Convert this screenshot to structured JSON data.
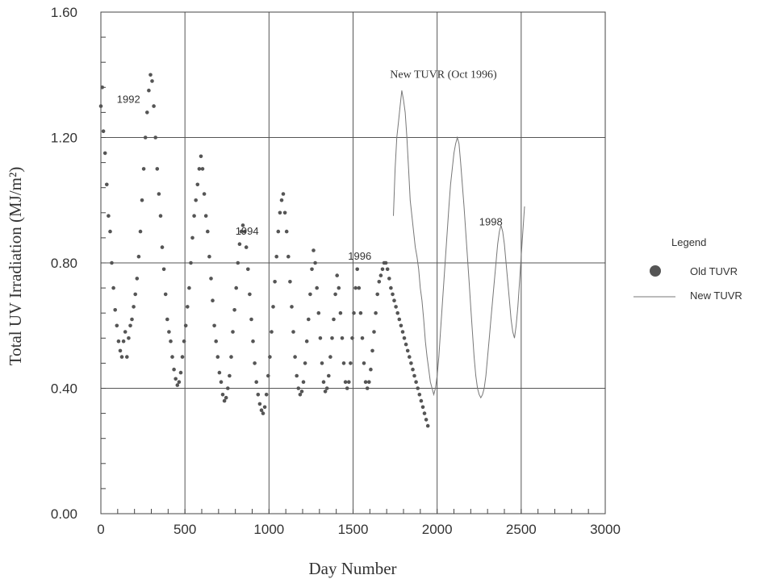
{
  "chart_data": {
    "type": "scatter",
    "title": "",
    "xlabel": "Day Number",
    "ylabel": "Total UV Irradiation (MJ/m²)",
    "xlim": [
      0,
      3000
    ],
    "ylim": [
      0,
      1.6
    ],
    "xticks": [
      "0",
      "500",
      "1000",
      "1500",
      "2000",
      "2500",
      "3000"
    ],
    "yticks": [
      "0.00",
      "0.40",
      "0.80",
      "1.20",
      "1.60"
    ],
    "grid": true,
    "legend_position": "right",
    "legend_title": "Legend",
    "series": [
      {
        "name": "Old TUVR",
        "style": "dots",
        "color": "#555555",
        "points": [
          [
            0,
            1.3
          ],
          [
            8,
            1.36
          ],
          [
            15,
            1.22
          ],
          [
            25,
            1.15
          ],
          [
            35,
            1.05
          ],
          [
            45,
            0.95
          ],
          [
            55,
            0.9
          ],
          [
            65,
            0.8
          ],
          [
            75,
            0.72
          ],
          [
            85,
            0.65
          ],
          [
            95,
            0.6
          ],
          [
            105,
            0.55
          ],
          [
            115,
            0.52
          ],
          [
            125,
            0.5
          ],
          [
            135,
            0.55
          ],
          [
            145,
            0.58
          ],
          [
            155,
            0.5
          ],
          [
            165,
            0.56
          ],
          [
            175,
            0.6
          ],
          [
            185,
            0.62
          ],
          [
            195,
            0.66
          ],
          [
            205,
            0.7
          ],
          [
            215,
            0.75
          ],
          [
            225,
            0.82
          ],
          [
            235,
            0.9
          ],
          [
            245,
            1.0
          ],
          [
            255,
            1.1
          ],
          [
            265,
            1.2
          ],
          [
            275,
            1.28
          ],
          [
            285,
            1.35
          ],
          [
            295,
            1.4
          ],
          [
            305,
            1.38
          ],
          [
            315,
            1.3
          ],
          [
            325,
            1.2
          ],
          [
            335,
            1.1
          ],
          [
            345,
            1.02
          ],
          [
            355,
            0.95
          ],
          [
            365,
            0.85
          ],
          [
            375,
            0.78
          ],
          [
            385,
            0.7
          ],
          [
            395,
            0.62
          ],
          [
            405,
            0.58
          ],
          [
            415,
            0.55
          ],
          [
            425,
            0.5
          ],
          [
            435,
            0.46
          ],
          [
            445,
            0.43
          ],
          [
            455,
            0.41
          ],
          [
            465,
            0.42
          ],
          [
            475,
            0.45
          ],
          [
            485,
            0.5
          ],
          [
            495,
            0.55
          ],
          [
            505,
            0.6
          ],
          [
            515,
            0.66
          ],
          [
            525,
            0.72
          ],
          [
            535,
            0.8
          ],
          [
            545,
            0.88
          ],
          [
            555,
            0.95
          ],
          [
            565,
            1.0
          ],
          [
            575,
            1.05
          ],
          [
            585,
            1.1
          ],
          [
            595,
            1.14
          ],
          [
            605,
            1.1
          ],
          [
            615,
            1.02
          ],
          [
            625,
            0.95
          ],
          [
            635,
            0.9
          ],
          [
            645,
            0.82
          ],
          [
            655,
            0.75
          ],
          [
            665,
            0.68
          ],
          [
            675,
            0.6
          ],
          [
            685,
            0.55
          ],
          [
            695,
            0.5
          ],
          [
            705,
            0.45
          ],
          [
            715,
            0.42
          ],
          [
            725,
            0.38
          ],
          [
            735,
            0.36
          ],
          [
            745,
            0.37
          ],
          [
            755,
            0.4
          ],
          [
            765,
            0.44
          ],
          [
            775,
            0.5
          ],
          [
            785,
            0.58
          ],
          [
            795,
            0.65
          ],
          [
            805,
            0.72
          ],
          [
            815,
            0.8
          ],
          [
            825,
            0.86
          ],
          [
            835,
            0.9
          ],
          [
            845,
            0.92
          ],
          [
            855,
            0.9
          ],
          [
            865,
            0.85
          ],
          [
            875,
            0.78
          ],
          [
            885,
            0.7
          ],
          [
            895,
            0.62
          ],
          [
            905,
            0.55
          ],
          [
            915,
            0.48
          ],
          [
            925,
            0.42
          ],
          [
            935,
            0.38
          ],
          [
            945,
            0.35
          ],
          [
            955,
            0.33
          ],
          [
            965,
            0.32
          ],
          [
            975,
            0.34
          ],
          [
            985,
            0.38
          ],
          [
            995,
            0.44
          ],
          [
            1005,
            0.5
          ],
          [
            1015,
            0.58
          ],
          [
            1025,
            0.66
          ],
          [
            1035,
            0.74
          ],
          [
            1045,
            0.82
          ],
          [
            1055,
            0.9
          ],
          [
            1065,
            0.96
          ],
          [
            1075,
            1.0
          ],
          [
            1085,
            1.02
          ],
          [
            1095,
            0.96
          ],
          [
            1105,
            0.9
          ],
          [
            1115,
            0.82
          ],
          [
            1125,
            0.74
          ],
          [
            1135,
            0.66
          ],
          [
            1145,
            0.58
          ],
          [
            1155,
            0.5
          ],
          [
            1165,
            0.44
          ],
          [
            1175,
            0.4
          ],
          [
            1185,
            0.38
          ],
          [
            1195,
            0.39
          ],
          [
            1205,
            0.42
          ],
          [
            1215,
            0.48
          ],
          [
            1225,
            0.55
          ],
          [
            1235,
            0.62
          ],
          [
            1245,
            0.7
          ],
          [
            1255,
            0.78
          ],
          [
            1265,
            0.84
          ],
          [
            1275,
            0.8
          ],
          [
            1285,
            0.72
          ],
          [
            1295,
            0.64
          ],
          [
            1305,
            0.56
          ],
          [
            1315,
            0.48
          ],
          [
            1325,
            0.42
          ],
          [
            1335,
            0.39
          ],
          [
            1345,
            0.4
          ],
          [
            1355,
            0.44
          ],
          [
            1365,
            0.5
          ],
          [
            1375,
            0.56
          ],
          [
            1385,
            0.62
          ],
          [
            1395,
            0.7
          ],
          [
            1405,
            0.76
          ],
          [
            1415,
            0.72
          ],
          [
            1425,
            0.64
          ],
          [
            1435,
            0.56
          ],
          [
            1445,
            0.48
          ],
          [
            1455,
            0.42
          ],
          [
            1465,
            0.4
          ],
          [
            1475,
            0.42
          ],
          [
            1485,
            0.48
          ],
          [
            1495,
            0.56
          ],
          [
            1505,
            0.64
          ],
          [
            1515,
            0.72
          ],
          [
            1525,
            0.78
          ],
          [
            1535,
            0.72
          ],
          [
            1545,
            0.64
          ],
          [
            1555,
            0.56
          ],
          [
            1565,
            0.48
          ],
          [
            1575,
            0.42
          ],
          [
            1585,
            0.4
          ],
          [
            1595,
            0.42
          ],
          [
            1605,
            0.46
          ],
          [
            1615,
            0.52
          ],
          [
            1625,
            0.58
          ],
          [
            1635,
            0.64
          ],
          [
            1645,
            0.7
          ],
          [
            1655,
            0.74
          ],
          [
            1665,
            0.76
          ],
          [
            1675,
            0.78
          ],
          [
            1685,
            0.8
          ],
          [
            1695,
            0.8
          ],
          [
            1705,
            0.78
          ],
          [
            1715,
            0.75
          ],
          [
            1725,
            0.72
          ],
          [
            1735,
            0.7
          ],
          [
            1745,
            0.68
          ],
          [
            1755,
            0.66
          ],
          [
            1765,
            0.64
          ],
          [
            1775,
            0.62
          ],
          [
            1785,
            0.6
          ],
          [
            1795,
            0.58
          ],
          [
            1805,
            0.56
          ],
          [
            1815,
            0.54
          ],
          [
            1825,
            0.52
          ],
          [
            1835,
            0.5
          ],
          [
            1845,
            0.48
          ],
          [
            1855,
            0.46
          ],
          [
            1865,
            0.44
          ],
          [
            1875,
            0.42
          ],
          [
            1885,
            0.4
          ],
          [
            1895,
            0.38
          ],
          [
            1905,
            0.36
          ],
          [
            1915,
            0.34
          ],
          [
            1925,
            0.32
          ],
          [
            1935,
            0.3
          ],
          [
            1945,
            0.28
          ]
        ]
      },
      {
        "name": "New TUVR",
        "style": "line",
        "color": "#777777",
        "points": [
          [
            1740,
            0.95
          ],
          [
            1750,
            1.1
          ],
          [
            1760,
            1.2
          ],
          [
            1770,
            1.25
          ],
          [
            1780,
            1.3
          ],
          [
            1790,
            1.35
          ],
          [
            1800,
            1.32
          ],
          [
            1810,
            1.28
          ],
          [
            1820,
            1.2
          ],
          [
            1830,
            1.1
          ],
          [
            1840,
            1.0
          ],
          [
            1850,
            0.95
          ],
          [
            1860,
            0.9
          ],
          [
            1870,
            0.85
          ],
          [
            1880,
            0.82
          ],
          [
            1890,
            0.78
          ],
          [
            1900,
            0.72
          ],
          [
            1910,
            0.68
          ],
          [
            1920,
            0.62
          ],
          [
            1930,
            0.55
          ],
          [
            1940,
            0.5
          ],
          [
            1950,
            0.46
          ],
          [
            1960,
            0.42
          ],
          [
            1970,
            0.4
          ],
          [
            1980,
            0.38
          ],
          [
            1990,
            0.4
          ],
          [
            2000,
            0.44
          ],
          [
            2010,
            0.5
          ],
          [
            2020,
            0.58
          ],
          [
            2030,
            0.66
          ],
          [
            2040,
            0.74
          ],
          [
            2050,
            0.82
          ],
          [
            2060,
            0.9
          ],
          [
            2070,
            0.98
          ],
          [
            2080,
            1.05
          ],
          [
            2090,
            1.1
          ],
          [
            2100,
            1.15
          ],
          [
            2110,
            1.18
          ],
          [
            2120,
            1.2
          ],
          [
            2130,
            1.18
          ],
          [
            2140,
            1.12
          ],
          [
            2150,
            1.05
          ],
          [
            2160,
            0.98
          ],
          [
            2170,
            0.9
          ],
          [
            2180,
            0.82
          ],
          [
            2190,
            0.74
          ],
          [
            2200,
            0.66
          ],
          [
            2210,
            0.58
          ],
          [
            2220,
            0.5
          ],
          [
            2230,
            0.44
          ],
          [
            2240,
            0.4
          ],
          [
            2250,
            0.38
          ],
          [
            2260,
            0.37
          ],
          [
            2270,
            0.38
          ],
          [
            2280,
            0.4
          ],
          [
            2290,
            0.44
          ],
          [
            2300,
            0.5
          ],
          [
            2310,
            0.56
          ],
          [
            2320,
            0.62
          ],
          [
            2330,
            0.68
          ],
          [
            2340,
            0.74
          ],
          [
            2350,
            0.8
          ],
          [
            2360,
            0.86
          ],
          [
            2370,
            0.9
          ],
          [
            2380,
            0.92
          ],
          [
            2390,
            0.9
          ],
          [
            2400,
            0.86
          ],
          [
            2410,
            0.8
          ],
          [
            2420,
            0.74
          ],
          [
            2430,
            0.68
          ],
          [
            2440,
            0.62
          ],
          [
            2450,
            0.58
          ],
          [
            2460,
            0.56
          ],
          [
            2470,
            0.6
          ],
          [
            2480,
            0.66
          ],
          [
            2490,
            0.74
          ],
          [
            2500,
            0.82
          ],
          [
            2510,
            0.9
          ],
          [
            2520,
            0.98
          ]
        ]
      }
    ],
    "annotations": [
      {
        "text": "1992",
        "x": 95,
        "y": 1.31
      },
      {
        "text": "1994",
        "x": 800,
        "y": 0.89
      },
      {
        "text": "1996",
        "x": 1470,
        "y": 0.81
      },
      {
        "text": "New TUVR (Oct 1996)",
        "x": 1720,
        "y": 1.39
      },
      {
        "text": "1998",
        "x": 2250,
        "y": 0.92
      }
    ]
  }
}
